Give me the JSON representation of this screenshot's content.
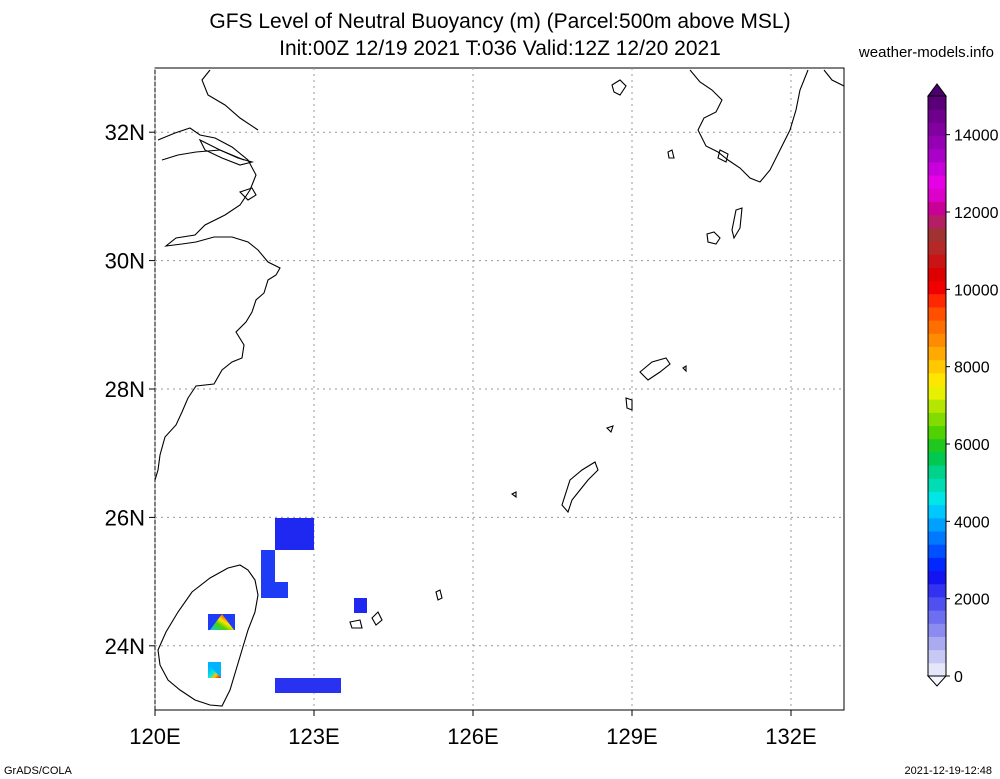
{
  "header": {
    "title_line1": "GFS Level of Neutral Buoyancy (m) (Parcel:500m above MSL)",
    "title_line2": "Init:00Z 12/19 2021 T:036 Valid:12Z 12/20 2021",
    "site": "weather-models.info"
  },
  "map": {
    "lat_labels": [
      "32N",
      "30N",
      "28N",
      "26N",
      "24N"
    ],
    "lon_labels": [
      "120E",
      "123E",
      "126E",
      "129E",
      "132E"
    ],
    "extent": {
      "lon_min": 120,
      "lon_max": 133,
      "lat_min": 23,
      "lat_max": 33
    },
    "gridlines": true
  },
  "colorbar": {
    "labels": [
      "0",
      "2000",
      "4000",
      "6000",
      "8000",
      "10000",
      "12000",
      "14000"
    ],
    "min": 0,
    "max": 15000,
    "colors": [
      "#e6e6fa",
      "#c8c8f5",
      "#aaaaf0",
      "#8c8cf0",
      "#6e6ef0",
      "#5050f0",
      "#3232f0",
      "#1414f0",
      "#0028ff",
      "#0050ff",
      "#0078ff",
      "#00a0ff",
      "#00c8ff",
      "#00e6e6",
      "#00dcb4",
      "#00d28c",
      "#00c850",
      "#1ec81e",
      "#50d200",
      "#82dc00",
      "#b4e600",
      "#e6f000",
      "#ffe600",
      "#ffc800",
      "#ffaa00",
      "#ff8c00",
      "#ff6e00",
      "#ff5000",
      "#ff2800",
      "#f00000",
      "#dc0000",
      "#c81414",
      "#b42828",
      "#a03232",
      "#b41e64",
      "#c80096",
      "#dc00c8",
      "#e600e6",
      "#c800dc",
      "#aa00c8",
      "#9600b4",
      "#8200a0",
      "#6e008c",
      "#5a0078"
    ]
  },
  "footer": {
    "left": "GrADS/COLA",
    "right": "2021-12-19-12:48"
  }
}
